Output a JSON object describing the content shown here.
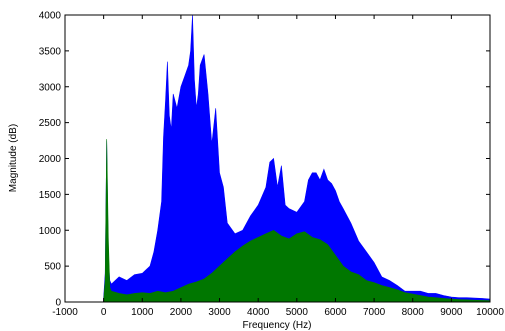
{
  "chart_data": {
    "type": "area",
    "title": "",
    "xlabel": "Frequency (Hz)",
    "ylabel": "Magnitude (dB)",
    "xlim": [
      -1000,
      10000
    ],
    "ylim": [
      0,
      4000
    ],
    "xticks": [
      -1000,
      0,
      1000,
      2000,
      3000,
      4000,
      5000,
      6000,
      7000,
      8000,
      9000,
      10000
    ],
    "yticks": [
      0,
      500,
      1000,
      1500,
      2000,
      2500,
      3000,
      3500,
      4000
    ],
    "grid": false,
    "legend": "none",
    "series": [
      {
        "color": "#0000ff",
        "x": [
          0,
          40,
          80,
          120,
          160,
          200,
          400,
          600,
          800,
          1000,
          1100,
          1200,
          1300,
          1400,
          1500,
          1550,
          1600,
          1650,
          1700,
          1750,
          1800,
          1900,
          2000,
          2100,
          2200,
          2250,
          2300,
          2350,
          2400,
          2450,
          2500,
          2600,
          2700,
          2800,
          2900,
          3000,
          3100,
          3200,
          3400,
          3600,
          3800,
          4000,
          4200,
          4300,
          4400,
          4500,
          4600,
          4700,
          4800,
          5000,
          5200,
          5300,
          5400,
          5500,
          5600,
          5700,
          5800,
          5900,
          6000,
          6100,
          6200,
          6400,
          6600,
          6800,
          7000,
          7200,
          7400,
          7600,
          7800,
          8000,
          8200,
          8400,
          8600,
          8800,
          9000,
          9200,
          9400,
          9600,
          9800,
          10000
        ],
        "y": [
          50,
          400,
          2250,
          600,
          300,
          250,
          350,
          300,
          380,
          400,
          450,
          500,
          700,
          1000,
          1400,
          2300,
          2800,
          3350,
          2600,
          2400,
          2900,
          2700,
          3000,
          3150,
          3300,
          3500,
          4000,
          3100,
          2700,
          2900,
          3300,
          3450,
          2900,
          2200,
          2700,
          1800,
          1600,
          1100,
          950,
          1000,
          1200,
          1350,
          1600,
          1950,
          2000,
          1600,
          1900,
          1350,
          1300,
          1250,
          1400,
          1700,
          1800,
          1800,
          1700,
          1850,
          1700,
          1650,
          1550,
          1400,
          1300,
          1100,
          850,
          700,
          550,
          350,
          300,
          230,
          150,
          150,
          150,
          120,
          120,
          90,
          70,
          60,
          60,
          55,
          50,
          40
        ]
      },
      {
        "color": "#007700",
        "x": [
          0,
          40,
          80,
          120,
          160,
          200,
          400,
          600,
          800,
          1000,
          1200,
          1400,
          1600,
          1800,
          2000,
          2200,
          2400,
          2600,
          2800,
          3000,
          3200,
          3400,
          3600,
          3800,
          4000,
          4200,
          4400,
          4600,
          4800,
          5000,
          5200,
          5400,
          5600,
          5800,
          6000,
          6200,
          6400,
          6600,
          6800,
          7000,
          7200,
          7400,
          7600,
          7800,
          8000,
          8200,
          8400,
          8600,
          8800,
          9000,
          9200,
          9400,
          9600,
          9800,
          10000
        ],
        "y": [
          20,
          300,
          2270,
          900,
          200,
          150,
          120,
          100,
          120,
          130,
          120,
          150,
          130,
          150,
          200,
          250,
          280,
          320,
          400,
          500,
          600,
          700,
          780,
          850,
          900,
          950,
          1000,
          920,
          880,
          950,
          980,
          900,
          870,
          800,
          650,
          500,
          420,
          380,
          300,
          270,
          230,
          200,
          170,
          130,
          110,
          90,
          70,
          60,
          50,
          40,
          35,
          30,
          25,
          22,
          20
        ]
      }
    ]
  }
}
